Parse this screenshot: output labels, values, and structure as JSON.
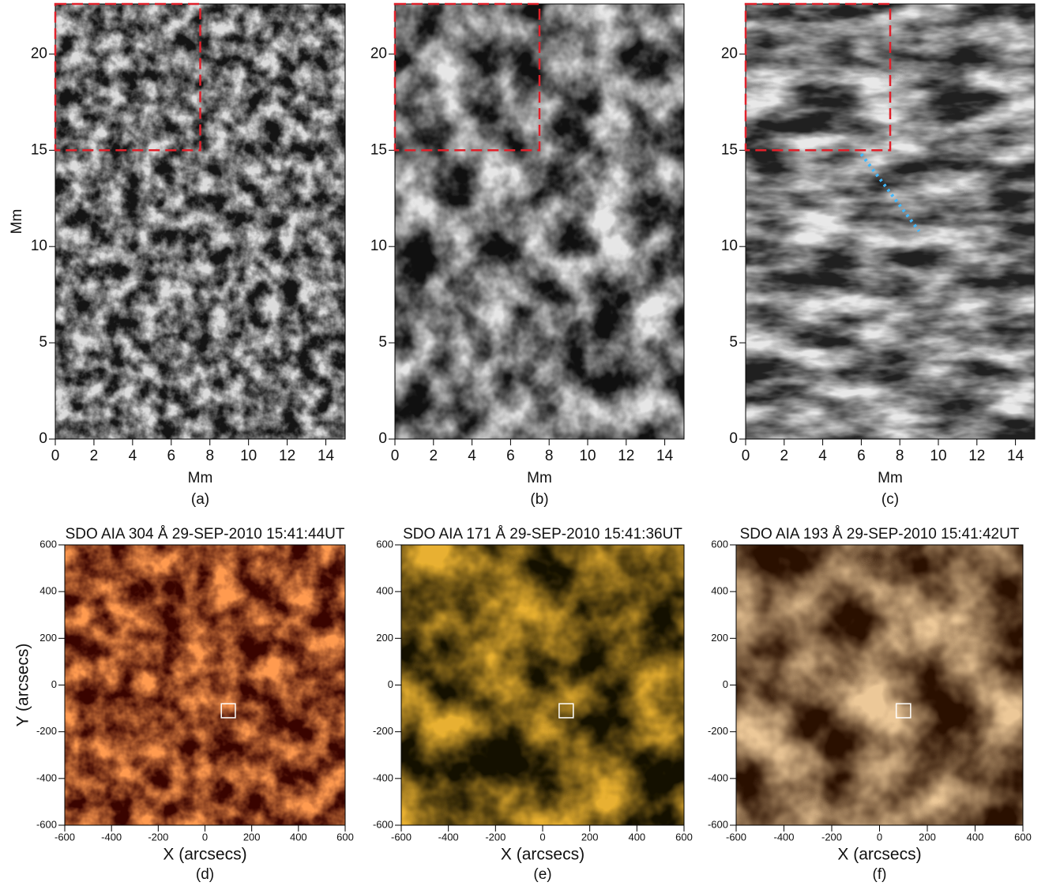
{
  "chart_data": [
    {
      "type": "image",
      "caption": "(a)",
      "xlabel": "Mm",
      "ylabel": "Mm",
      "colors": [
        "#141414",
        "#dcdcdc"
      ],
      "xlim": [
        0,
        15
      ],
      "ylim": [
        0,
        22.6
      ],
      "xticks": [
        0,
        2,
        4,
        6,
        8,
        10,
        12,
        14
      ],
      "yticks": [
        0,
        5,
        10,
        15,
        20
      ],
      "region": {
        "x": [
          0,
          7.5
        ],
        "y": [
          15,
          22.6
        ],
        "color": "#e0202a"
      }
    },
    {
      "type": "image",
      "caption": "(b)",
      "xlabel": "Mm",
      "colors": [
        "#101010",
        "#e6e6e6"
      ],
      "xlim": [
        0,
        15
      ],
      "ylim": [
        0,
        22.6
      ],
      "xticks": [
        0,
        2,
        4,
        6,
        8,
        10,
        12,
        14
      ],
      "yticks": [
        0,
        5,
        10,
        15,
        20
      ],
      "region": {
        "x": [
          0,
          7.5
        ],
        "y": [
          15,
          22.6
        ],
        "color": "#e0202a"
      }
    },
    {
      "type": "image",
      "caption": "(c)",
      "xlabel": "Mm",
      "colors": [
        "#202020",
        "#e8e8e8"
      ],
      "xlim": [
        0,
        15
      ],
      "ylim": [
        0,
        22.6
      ],
      "xticks": [
        0,
        2,
        4,
        6,
        8,
        10,
        12,
        14
      ],
      "yticks": [
        0,
        5,
        10,
        15,
        20
      ],
      "region": {
        "x": [
          0,
          7.5
        ],
        "y": [
          15,
          22.6
        ],
        "color": "#e0202a"
      },
      "path": {
        "x": [
          6,
          9
        ],
        "y": [
          14.8,
          10.8
        ],
        "color": "#40b8ff"
      }
    },
    {
      "type": "image",
      "title": "SDO AIA 304 Å 29-SEP-2010 15:41:44UT",
      "caption": "(d)",
      "xlabel": "X (arcsecs)",
      "ylabel": "Y (arcsecs)",
      "colors": [
        "#3a0400",
        "#ff9a50"
      ],
      "xlim": [
        -600,
        600
      ],
      "ylim": [
        -600,
        600
      ],
      "xticks": [
        -600,
        -400,
        -200,
        0,
        200,
        400,
        600
      ],
      "yticks": [
        -600,
        -400,
        -200,
        0,
        200,
        400,
        600
      ],
      "box": {
        "x": [
          70,
          130
        ],
        "y": [
          -140,
          -80
        ],
        "color": "#ffffff"
      }
    },
    {
      "type": "image",
      "title": "SDO AIA 171 Å 29-SEP-2010 15:41:36UT",
      "caption": "(e)",
      "xlabel": "X (arcsecs)",
      "colors": [
        "#141000",
        "#e8b030"
      ],
      "xlim": [
        -600,
        600
      ],
      "ylim": [
        -600,
        600
      ],
      "xticks": [
        -600,
        -400,
        -200,
        0,
        200,
        400,
        600
      ],
      "yticks": [
        -600,
        -400,
        -200,
        0,
        200,
        400,
        600
      ],
      "box": {
        "x": [
          70,
          130
        ],
        "y": [
          -140,
          -80
        ],
        "color": "#ffffff"
      }
    },
    {
      "type": "image",
      "title": "SDO AIA 193 Å 29-SEP-2010 15:41:42UT",
      "caption": "(f)",
      "xlabel": "X (arcsecs)",
      "colors": [
        "#2a1000",
        "#ecc898"
      ],
      "xlim": [
        -600,
        600
      ],
      "ylim": [
        -600,
        600
      ],
      "xticks": [
        -600,
        -400,
        -200,
        0,
        200,
        400,
        600
      ],
      "yticks": [
        -600,
        -400,
        -200,
        0,
        200,
        400,
        600
      ],
      "box": {
        "x": [
          70,
          130
        ],
        "y": [
          -140,
          -80
        ],
        "color": "#ffffff"
      }
    }
  ]
}
